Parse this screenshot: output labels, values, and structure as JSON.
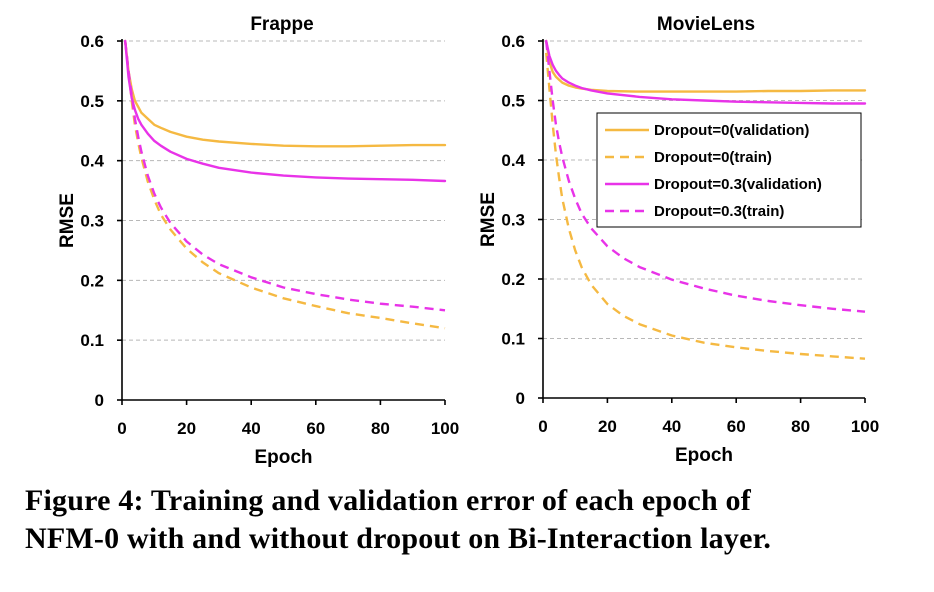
{
  "figure": {
    "caption_line1": "Figure 4: Training and validation error of each epoch of",
    "caption_line2": "NFM-0 with and without dropout on Bi-Interaction layer."
  },
  "colors": {
    "dropout0": "#f5b942",
    "dropout03": "#e833e8"
  },
  "chart_data": [
    {
      "type": "line",
      "title": "Frappe",
      "xlabel": "Epoch",
      "ylabel": "RMSE",
      "xlim": [
        0,
        100
      ],
      "ylim": [
        0,
        0.6
      ],
      "xticks": [
        0,
        20,
        40,
        60,
        80,
        100
      ],
      "yticks": [
        0,
        0.1,
        0.2,
        0.3,
        0.4,
        0.5,
        0.6
      ],
      "grid": "horizontal dashed",
      "legend": "none",
      "series": [
        {
          "name": "Dropout=0(validation)",
          "style": "solid",
          "color": "#f5b942",
          "x": [
            1,
            2,
            3,
            4,
            5,
            6,
            8,
            10,
            12,
            15,
            20,
            25,
            30,
            40,
            50,
            60,
            70,
            80,
            90,
            100
          ],
          "y": [
            0.6,
            0.55,
            0.52,
            0.5,
            0.49,
            0.48,
            0.47,
            0.46,
            0.455,
            0.448,
            0.44,
            0.435,
            0.432,
            0.428,
            0.425,
            0.424,
            0.424,
            0.425,
            0.426,
            0.426
          ]
        },
        {
          "name": "Dropout=0(train)",
          "style": "dashed",
          "color": "#f5b942",
          "x": [
            1,
            2,
            3,
            4,
            5,
            6,
            8,
            10,
            12,
            15,
            20,
            25,
            30,
            40,
            50,
            60,
            70,
            80,
            90,
            100
          ],
          "y": [
            0.6,
            0.55,
            0.5,
            0.46,
            0.43,
            0.405,
            0.365,
            0.335,
            0.31,
            0.285,
            0.253,
            0.23,
            0.212,
            0.188,
            0.17,
            0.157,
            0.145,
            0.137,
            0.128,
            0.12
          ]
        },
        {
          "name": "Dropout=0.3(validation)",
          "style": "solid",
          "color": "#e833e8",
          "x": [
            1,
            2,
            3,
            4,
            5,
            6,
            8,
            10,
            12,
            15,
            20,
            25,
            30,
            40,
            50,
            60,
            70,
            80,
            90,
            100
          ],
          "y": [
            0.6,
            0.54,
            0.505,
            0.485,
            0.47,
            0.46,
            0.445,
            0.433,
            0.425,
            0.415,
            0.403,
            0.395,
            0.388,
            0.38,
            0.375,
            0.372,
            0.37,
            0.369,
            0.368,
            0.366
          ]
        },
        {
          "name": "Dropout=0.3(train)",
          "style": "dashed",
          "color": "#e833e8",
          "x": [
            1,
            2,
            3,
            4,
            5,
            6,
            8,
            10,
            12,
            15,
            20,
            25,
            30,
            40,
            50,
            60,
            70,
            80,
            90,
            100
          ],
          "y": [
            0.6,
            0.55,
            0.51,
            0.47,
            0.44,
            0.415,
            0.375,
            0.345,
            0.322,
            0.296,
            0.265,
            0.243,
            0.227,
            0.205,
            0.188,
            0.177,
            0.168,
            0.161,
            0.156,
            0.15
          ]
        }
      ]
    },
    {
      "type": "line",
      "title": "MovieLens",
      "xlabel": "Epoch",
      "ylabel": "RMSE",
      "xlim": [
        0,
        100
      ],
      "ylim": [
        0,
        0.6
      ],
      "xticks": [
        0,
        20,
        40,
        60,
        80,
        100
      ],
      "yticks": [
        0,
        0.1,
        0.2,
        0.3,
        0.4,
        0.5,
        0.6
      ],
      "grid": "horizontal dashed",
      "legend": "top-right",
      "series": [
        {
          "name": "Dropout=0(validation)",
          "style": "solid",
          "color": "#f5b942",
          "x": [
            1,
            2,
            3,
            4,
            5,
            6,
            8,
            10,
            12,
            15,
            20,
            30,
            40,
            50,
            60,
            70,
            80,
            90,
            100
          ],
          "y": [
            0.6,
            0.565,
            0.548,
            0.54,
            0.535,
            0.53,
            0.525,
            0.522,
            0.52,
            0.518,
            0.516,
            0.515,
            0.515,
            0.515,
            0.515,
            0.516,
            0.516,
            0.517,
            0.517
          ]
        },
        {
          "name": "Dropout=0(train)",
          "style": "dashed",
          "color": "#f5b942",
          "x": [
            1,
            2,
            3,
            4,
            5,
            6,
            8,
            10,
            12,
            15,
            20,
            25,
            30,
            40,
            50,
            60,
            70,
            80,
            90,
            100
          ],
          "y": [
            0.58,
            0.52,
            0.46,
            0.41,
            0.37,
            0.335,
            0.285,
            0.248,
            0.22,
            0.19,
            0.158,
            0.138,
            0.124,
            0.105,
            0.093,
            0.085,
            0.079,
            0.074,
            0.07,
            0.066
          ]
        },
        {
          "name": "Dropout=0.3(validation)",
          "style": "solid",
          "color": "#e833e8",
          "x": [
            1,
            2,
            3,
            4,
            5,
            6,
            8,
            10,
            12,
            15,
            20,
            30,
            40,
            50,
            60,
            70,
            80,
            90,
            100
          ],
          "y": [
            0.6,
            0.575,
            0.56,
            0.55,
            0.543,
            0.537,
            0.53,
            0.525,
            0.521,
            0.517,
            0.512,
            0.506,
            0.502,
            0.5,
            0.498,
            0.497,
            0.496,
            0.495,
            0.495
          ]
        },
        {
          "name": "Dropout=0.3(train)",
          "style": "dashed",
          "color": "#e833e8",
          "x": [
            1,
            2,
            3,
            4,
            5,
            6,
            8,
            10,
            12,
            15,
            20,
            25,
            30,
            40,
            50,
            60,
            70,
            80,
            90,
            100
          ],
          "y": [
            0.6,
            0.55,
            0.5,
            0.46,
            0.43,
            0.405,
            0.365,
            0.335,
            0.31,
            0.285,
            0.255,
            0.235,
            0.22,
            0.199,
            0.184,
            0.172,
            0.163,
            0.156,
            0.15,
            0.145
          ]
        }
      ]
    }
  ]
}
